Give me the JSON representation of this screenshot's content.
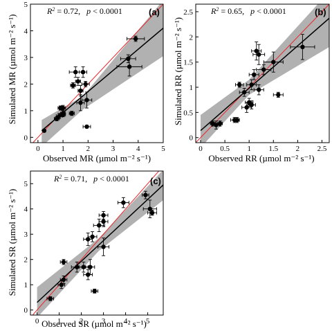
{
  "chart_data": [
    {
      "type": "scatter",
      "panel_label": "(a)",
      "stats": {
        "r2_label": "R",
        "r2_value": "= 0.72,",
        "p_label": "p",
        "p_value": "< 0.0001"
      },
      "xlabel": "Observed MR (µmol m⁻² s⁻¹)",
      "ylabel": "Simulated MR (µmol m⁻² s⁻¹)",
      "xlim": [
        -0.3,
        5.0
      ],
      "ylim": [
        -0.2,
        5.0
      ],
      "xticks": [
        0,
        1,
        2,
        3,
        4,
        5
      ],
      "yticks": [
        0,
        1,
        2,
        3,
        4,
        5
      ],
      "fit_line": {
        "x": [
          0.15,
          5.0
        ],
        "y": [
          0.25,
          4.1
        ]
      },
      "confidence_band": {
        "x": [
          0.15,
          1.8,
          5.0
        ],
        "lower": [
          -0.35,
          1.05,
          3.05
        ],
        "upper": [
          0.65,
          1.55,
          5.15
        ]
      },
      "points": [
        {
          "x": 0.25,
          "y": 0.25,
          "xerr": 0.05,
          "yerr": 0.05
        },
        {
          "x": 0.75,
          "y": 0.7,
          "xerr": 0.1,
          "yerr": 0.08
        },
        {
          "x": 0.85,
          "y": 0.8,
          "xerr": 0.12,
          "yerr": 0.1
        },
        {
          "x": 0.9,
          "y": 1.1,
          "xerr": 0.1,
          "yerr": 0.08
        },
        {
          "x": 1.0,
          "y": 1.1,
          "xerr": 0.1,
          "yerr": 0.1
        },
        {
          "x": 1.0,
          "y": 0.9,
          "xerr": 0.1,
          "yerr": 0.1
        },
        {
          "x": 1.0,
          "y": 0.85,
          "xerr": 0.1,
          "yerr": 0.08
        },
        {
          "x": 1.35,
          "y": 0.9,
          "xerr": 0.1,
          "yerr": 0.08
        },
        {
          "x": 1.4,
          "y": 1.95,
          "xerr": 0.1,
          "yerr": 0.1
        },
        {
          "x": 1.5,
          "y": 2.45,
          "xerr": 0.25,
          "yerr": 0.2
        },
        {
          "x": 1.6,
          "y": 2.1,
          "xerr": 0.1,
          "yerr": 0.15
        },
        {
          "x": 1.7,
          "y": 1.3,
          "xerr": 0.15,
          "yerr": 0.3
        },
        {
          "x": 1.7,
          "y": 1.75,
          "xerr": 0.1,
          "yerr": 0.2
        },
        {
          "x": 1.8,
          "y": 2.45,
          "xerr": 0.15,
          "yerr": 0.2
        },
        {
          "x": 1.9,
          "y": 2.0,
          "xerr": 0.15,
          "yerr": 0.1
        },
        {
          "x": 1.95,
          "y": 1.4,
          "xerr": 0.2,
          "yerr": 0.3
        },
        {
          "x": 1.95,
          "y": 0.4,
          "xerr": 0.15,
          "yerr": 0.05
        },
        {
          "x": 3.6,
          "y": 2.95,
          "xerr": 0.3,
          "yerr": 0.15
        },
        {
          "x": 3.65,
          "y": 2.65,
          "xerr": 0.5,
          "yerr": 0.35
        },
        {
          "x": 3.9,
          "y": 3.7,
          "xerr": 0.35,
          "yerr": 0.1
        }
      ]
    },
    {
      "type": "scatter",
      "panel_label": "(b)",
      "stats": {
        "r2_label": "R",
        "r2_value": "= 0.65,",
        "p_label": "p",
        "p_value": "< 0.0001"
      },
      "xlabel": "Observed RR (µmol m⁻² s⁻¹)",
      "ylabel": "Simulated RR (µmol m⁻² s⁻¹)",
      "xlim": [
        -0.1,
        2.65
      ],
      "ylim": [
        -0.1,
        2.65
      ],
      "xticks": [
        0.0,
        0.5,
        1.0,
        1.5,
        2.0,
        2.5
      ],
      "yticks": [
        0.0,
        0.5,
        1.0,
        1.5,
        2.0,
        2.5
      ],
      "fit_line": {
        "x": [
          0.0,
          2.65
        ],
        "y": [
          0.14,
          2.37
        ]
      },
      "confidence_band": {
        "x": [
          0.0,
          1.0,
          2.65
        ],
        "lower": [
          -0.2,
          0.85,
          1.8
        ],
        "upper": [
          0.45,
          1.15,
          2.9
        ]
      },
      "points": [
        {
          "x": 0.25,
          "y": 0.28,
          "xerr": 0.05,
          "yerr": 0.05
        },
        {
          "x": 0.32,
          "y": 0.25,
          "xerr": 0.08,
          "yerr": 0.08
        },
        {
          "x": 0.4,
          "y": 0.28,
          "xerr": 0.05,
          "yerr": 0.05
        },
        {
          "x": 0.7,
          "y": 0.35,
          "xerr": 0.08,
          "yerr": 0.05
        },
        {
          "x": 0.75,
          "y": 0.35,
          "xerr": 0.05,
          "yerr": 0.05
        },
        {
          "x": 0.8,
          "y": 1.05,
          "xerr": 0.08,
          "yerr": 0.05
        },
        {
          "x": 0.9,
          "y": 0.9,
          "xerr": 0.1,
          "yerr": 0.08
        },
        {
          "x": 0.95,
          "y": 0.6,
          "xerr": 0.1,
          "yerr": 0.1
        },
        {
          "x": 1.0,
          "y": 0.7,
          "xerr": 0.08,
          "yerr": 0.08
        },
        {
          "x": 1.05,
          "y": 1.05,
          "xerr": 0.1,
          "yerr": 0.1
        },
        {
          "x": 1.05,
          "y": 0.65,
          "xerr": 0.08,
          "yerr": 0.08
        },
        {
          "x": 1.1,
          "y": 1.25,
          "xerr": 0.1,
          "yerr": 0.1
        },
        {
          "x": 1.15,
          "y": 1.72,
          "xerr": 0.1,
          "yerr": 0.18
        },
        {
          "x": 1.2,
          "y": 1.65,
          "xerr": 0.12,
          "yerr": 0.2
        },
        {
          "x": 1.2,
          "y": 0.95,
          "xerr": 0.1,
          "yerr": 0.1
        },
        {
          "x": 1.3,
          "y": 1.35,
          "xerr": 0.15,
          "yerr": 0.1
        },
        {
          "x": 1.5,
          "y": 1.5,
          "xerr": 0.2,
          "yerr": 0.2
        },
        {
          "x": 1.6,
          "y": 0.85,
          "xerr": 0.1,
          "yerr": 0.05
        },
        {
          "x": 2.1,
          "y": 1.8,
          "xerr": 0.25,
          "yerr": 0.25
        }
      ]
    },
    {
      "type": "scatter",
      "panel_label": "(c)",
      "stats": {
        "r2_label": "R",
        "r2_value": "= 0.71,",
        "p_label": "p",
        "p_value": "< 0.0001"
      },
      "xlabel": "Observed SR (µmol m⁻² s⁻¹)",
      "ylabel": "Simulated SR (µmol m⁻² s⁻¹)",
      "xlim": [
        -0.3,
        5.7
      ],
      "ylim": [
        -0.2,
        5.5
      ],
      "xticks": [
        0,
        1,
        2,
        3,
        4,
        5
      ],
      "yticks": [
        0,
        1,
        2,
        3,
        4,
        5
      ],
      "fit_line": {
        "x": [
          0.0,
          5.7
        ],
        "y": [
          0.3,
          4.95
        ]
      },
      "confidence_band": {
        "x": [
          0.0,
          2.8,
          5.7
        ],
        "lower": [
          -0.3,
          2.35,
          4.35
        ],
        "upper": [
          0.9,
          2.85,
          5.55
        ]
      },
      "points": [
        {
          "x": 0.6,
          "y": 0.45,
          "xerr": 0.15,
          "yerr": 0.08
        },
        {
          "x": 1.1,
          "y": 1.0,
          "xerr": 0.15,
          "yerr": 0.15
        },
        {
          "x": 1.2,
          "y": 1.2,
          "xerr": 0.15,
          "yerr": 0.15
        },
        {
          "x": 1.2,
          "y": 1.9,
          "xerr": 0.15,
          "yerr": 0.1
        },
        {
          "x": 1.8,
          "y": 1.7,
          "xerr": 0.25,
          "yerr": 0.2
        },
        {
          "x": 2.1,
          "y": 1.7,
          "xerr": 0.2,
          "yerr": 0.2
        },
        {
          "x": 2.3,
          "y": 1.4,
          "xerr": 0.2,
          "yerr": 0.2
        },
        {
          "x": 2.4,
          "y": 1.7,
          "xerr": 0.2,
          "yerr": 0.3
        },
        {
          "x": 2.3,
          "y": 2.8,
          "xerr": 0.2,
          "yerr": 0.25
        },
        {
          "x": 2.5,
          "y": 2.9,
          "xerr": 0.2,
          "yerr": 0.2
        },
        {
          "x": 2.6,
          "y": 0.75,
          "xerr": 0.15,
          "yerr": 0.08
        },
        {
          "x": 2.8,
          "y": 3.35,
          "xerr": 0.25,
          "yerr": 0.25
        },
        {
          "x": 3.0,
          "y": 3.5,
          "xerr": 0.2,
          "yerr": 0.2
        },
        {
          "x": 3.0,
          "y": 3.75,
          "xerr": 0.2,
          "yerr": 0.15
        },
        {
          "x": 3.0,
          "y": 2.5,
          "xerr": 0.25,
          "yerr": 0.35
        },
        {
          "x": 3.9,
          "y": 4.25,
          "xerr": 0.25,
          "yerr": 0.2
        },
        {
          "x": 4.9,
          "y": 4.55,
          "xerr": 0.15,
          "yerr": 0.15
        },
        {
          "x": 5.1,
          "y": 4.0,
          "xerr": 0.3,
          "yerr": 0.35
        },
        {
          "x": 5.2,
          "y": 3.85,
          "xerr": 0.2,
          "yerr": 0.1
        }
      ]
    }
  ]
}
